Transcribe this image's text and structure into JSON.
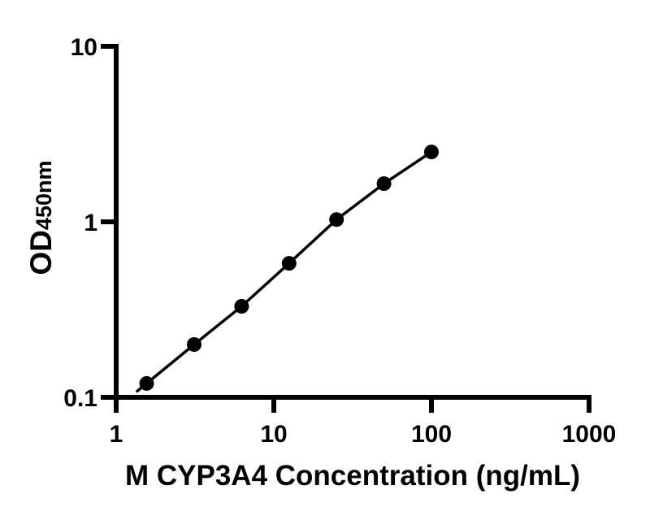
{
  "figure": {
    "description": "ELISA standard curve plot"
  },
  "chart_data": {
    "type": "scatter",
    "subtype": "standard-curve",
    "title": "",
    "xlabel": "M CYP3A4 Concentration (ng/mL)",
    "ylabel_main": "OD",
    "ylabel_sub": "450nm",
    "x_scale": "log10",
    "y_scale": "log10",
    "xlim": [
      1,
      1000
    ],
    "ylim": [
      0.1,
      10
    ],
    "x_ticks": [
      "1",
      "10",
      "100",
      "1000"
    ],
    "y_ticks": [
      "0.1",
      "1",
      "10"
    ],
    "grid": false,
    "legend": false,
    "colors": {
      "ink": "#000000",
      "background": "#ffffff"
    },
    "series": [
      {
        "marker": "filled-circle",
        "line": "solid",
        "color": "#000000",
        "x": [
          1.56,
          3.125,
          6.25,
          12.5,
          25,
          50,
          100
        ],
        "y": [
          0.12,
          0.2,
          0.33,
          0.58,
          1.03,
          1.65,
          2.5
        ]
      }
    ]
  }
}
